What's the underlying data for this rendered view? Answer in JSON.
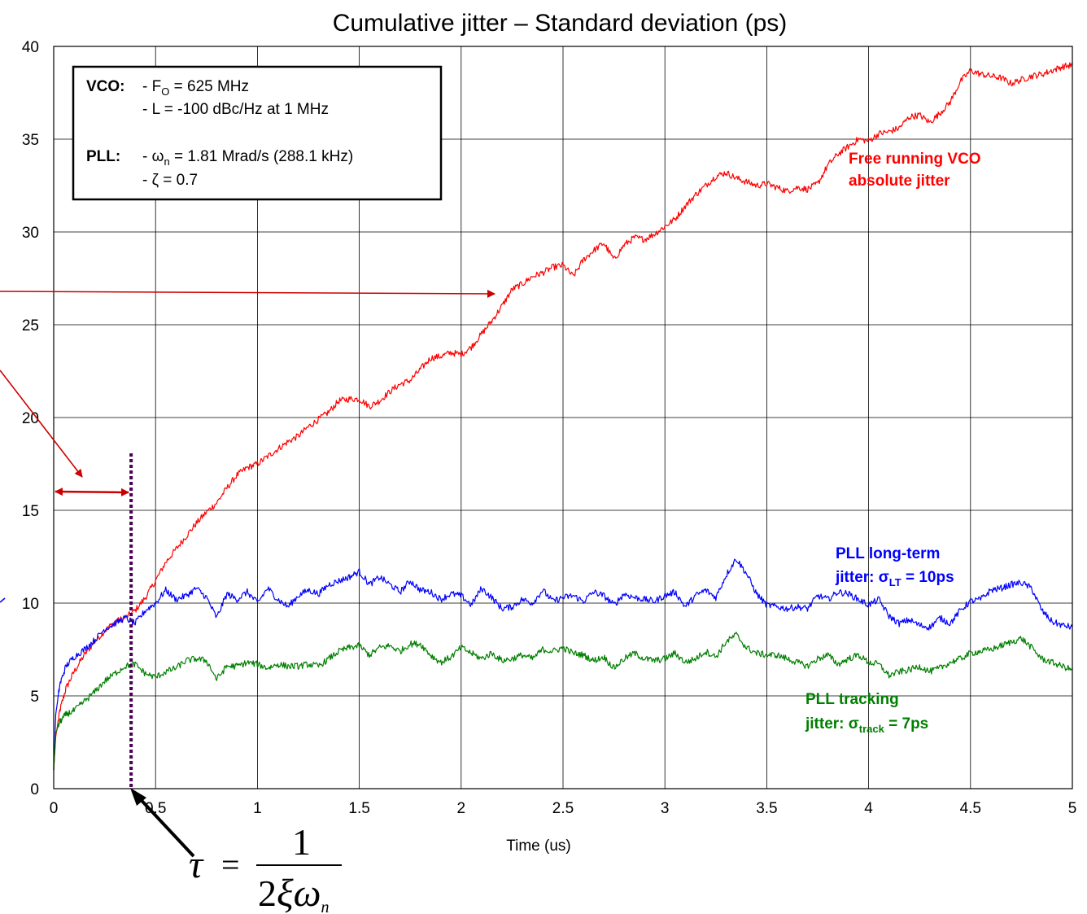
{
  "chart_data": {
    "type": "line",
    "title": "Cumulative jitter – Standard deviation (ps)",
    "xlabel": "Time (us)",
    "ylabel": "",
    "xlim": [
      0,
      5
    ],
    "ylim": [
      0,
      40
    ],
    "x_ticks": [
      "0",
      "0.5",
      "1",
      "1.5",
      "2",
      "2.5",
      "3",
      "3.5",
      "4",
      "4.5",
      "5"
    ],
    "y_ticks": [
      "0",
      "5",
      "10",
      "15",
      "20",
      "25",
      "30",
      "35",
      "40"
    ],
    "grid": true,
    "series": [
      {
        "name": "Free running VCO absolute jitter",
        "color": "#ff0000",
        "x": [
          0,
          0.01,
          0.03,
          0.06,
          0.1,
          0.15,
          0.2,
          0.25,
          0.3,
          0.35,
          0.4,
          0.45,
          0.5,
          0.55,
          0.6,
          0.65,
          0.7,
          0.75,
          0.8,
          0.85,
          0.9,
          0.95,
          1.0,
          1.05,
          1.1,
          1.15,
          1.2,
          1.25,
          1.3,
          1.35,
          1.4,
          1.45,
          1.5,
          1.55,
          1.6,
          1.65,
          1.7,
          1.75,
          1.8,
          1.85,
          1.9,
          1.95,
          2.0,
          2.05,
          2.1,
          2.15,
          2.2,
          2.25,
          2.3,
          2.35,
          2.4,
          2.45,
          2.5,
          2.55,
          2.6,
          2.65,
          2.7,
          2.75,
          2.8,
          2.85,
          2.9,
          2.95,
          3.0,
          3.05,
          3.1,
          3.15,
          3.2,
          3.25,
          3.3,
          3.35,
          3.4,
          3.45,
          3.5,
          3.55,
          3.6,
          3.65,
          3.7,
          3.75,
          3.8,
          3.85,
          3.9,
          3.95,
          4.0,
          4.05,
          4.1,
          4.15,
          4.2,
          4.25,
          4.3,
          4.35,
          4.4,
          4.45,
          4.5,
          4.55,
          4.6,
          4.65,
          4.7,
          4.75,
          4.8,
          4.85,
          4.9,
          4.95,
          5.0
        ],
        "y": [
          1.0,
          2.8,
          4.2,
          5.4,
          6.3,
          7.2,
          7.9,
          8.5,
          9.0,
          9.2,
          9.6,
          10.3,
          11.2,
          12.2,
          12.9,
          13.6,
          14.3,
          14.9,
          15.4,
          16.2,
          16.9,
          17.3,
          17.5,
          17.9,
          18.3,
          18.7,
          19.0,
          19.5,
          19.9,
          20.3,
          20.9,
          21.0,
          21.0,
          20.6,
          20.9,
          21.4,
          21.8,
          22.0,
          22.6,
          23.2,
          23.3,
          23.5,
          23.4,
          23.8,
          24.5,
          25.2,
          26.0,
          26.9,
          27.2,
          27.6,
          27.8,
          28.1,
          28.2,
          27.6,
          28.5,
          29.0,
          29.4,
          28.5,
          29.3,
          29.7,
          29.6,
          29.9,
          30.3,
          30.7,
          31.4,
          32.0,
          32.5,
          33.0,
          33.2,
          32.9,
          32.7,
          32.5,
          32.6,
          32.4,
          32.2,
          32.4,
          32.3,
          32.6,
          33.6,
          34.2,
          34.6,
          35.0,
          34.9,
          35.3,
          35.4,
          35.6,
          36.2,
          36.3,
          35.9,
          36.4,
          37.0,
          38.1,
          38.7,
          38.5,
          38.4,
          38.3,
          38.0,
          38.2,
          38.4,
          38.5,
          38.7,
          38.9,
          39.0
        ]
      },
      {
        "name": "PLL long-term jitter: σLT = 10ps",
        "color": "#0000ff",
        "x": [
          0,
          0.01,
          0.03,
          0.06,
          0.1,
          0.15,
          0.2,
          0.25,
          0.3,
          0.35,
          0.4,
          0.45,
          0.5,
          0.55,
          0.6,
          0.65,
          0.7,
          0.75,
          0.8,
          0.85,
          0.9,
          0.95,
          1.0,
          1.05,
          1.1,
          1.15,
          1.2,
          1.25,
          1.3,
          1.35,
          1.4,
          1.45,
          1.5,
          1.55,
          1.6,
          1.65,
          1.7,
          1.75,
          1.8,
          1.85,
          1.9,
          1.95,
          2.0,
          2.05,
          2.1,
          2.15,
          2.2,
          2.25,
          2.3,
          2.35,
          2.4,
          2.45,
          2.5,
          2.55,
          2.6,
          2.65,
          2.7,
          2.75,
          2.8,
          2.85,
          2.9,
          2.95,
          3.0,
          3.05,
          3.1,
          3.15,
          3.2,
          3.25,
          3.3,
          3.35,
          3.4,
          3.45,
          3.5,
          3.55,
          3.6,
          3.65,
          3.7,
          3.75,
          3.8,
          3.85,
          3.9,
          3.95,
          4.0,
          4.05,
          4.1,
          4.15,
          4.2,
          4.25,
          4.3,
          4.35,
          4.4,
          4.45,
          4.5,
          4.55,
          4.6,
          4.65,
          4.7,
          4.75,
          4.8,
          4.85,
          4.9,
          4.95,
          5.0
        ],
        "y": [
          1.0,
          4.0,
          5.6,
          6.6,
          7.1,
          7.5,
          8.0,
          8.6,
          8.9,
          9.2,
          8.9,
          9.6,
          10.0,
          10.7,
          10.2,
          10.4,
          10.8,
          10.3,
          9.2,
          10.5,
          10.2,
          10.6,
          10.0,
          10.8,
          10.2,
          9.8,
          10.4,
          10.7,
          10.5,
          11.0,
          11.2,
          11.4,
          11.7,
          11.0,
          11.4,
          11.0,
          10.6,
          11.2,
          10.7,
          10.6,
          10.2,
          10.5,
          10.4,
          9.9,
          10.8,
          10.3,
          9.7,
          9.8,
          10.2,
          10.0,
          10.7,
          10.1,
          10.3,
          10.4,
          10.1,
          10.6,
          10.4,
          9.9,
          10.5,
          10.3,
          10.2,
          10.1,
          10.4,
          10.6,
          9.8,
          10.4,
          10.7,
          10.3,
          11.5,
          12.4,
          11.6,
          10.5,
          9.9,
          9.8,
          9.7,
          9.8,
          9.7,
          10.4,
          10.2,
          10.6,
          10.5,
          10.2,
          9.9,
          10.2,
          9.3,
          8.9,
          9.1,
          8.8,
          8.7,
          9.2,
          8.9,
          9.6,
          10.1,
          10.2,
          10.7,
          10.8,
          11.0,
          11.1,
          10.8,
          9.6,
          9.0,
          8.8,
          8.7
        ]
      },
      {
        "name": "PLL tracking jitter: σtrack = 7ps",
        "color": "#008000",
        "x": [
          0,
          0.01,
          0.03,
          0.06,
          0.1,
          0.15,
          0.2,
          0.25,
          0.3,
          0.35,
          0.4,
          0.45,
          0.5,
          0.55,
          0.6,
          0.65,
          0.7,
          0.75,
          0.8,
          0.85,
          0.9,
          0.95,
          1.0,
          1.05,
          1.1,
          1.15,
          1.2,
          1.25,
          1.3,
          1.35,
          1.4,
          1.45,
          1.5,
          1.55,
          1.6,
          1.65,
          1.7,
          1.75,
          1.8,
          1.85,
          1.9,
          1.95,
          2.0,
          2.05,
          2.1,
          2.15,
          2.2,
          2.25,
          2.3,
          2.35,
          2.4,
          2.45,
          2.5,
          2.55,
          2.6,
          2.65,
          2.7,
          2.75,
          2.8,
          2.85,
          2.9,
          2.95,
          3.0,
          3.05,
          3.1,
          3.15,
          3.2,
          3.25,
          3.3,
          3.35,
          3.4,
          3.45,
          3.5,
          3.55,
          3.6,
          3.65,
          3.7,
          3.75,
          3.8,
          3.85,
          3.9,
          3.95,
          4.0,
          4.05,
          4.1,
          4.15,
          4.2,
          4.25,
          4.3,
          4.35,
          4.4,
          4.45,
          4.5,
          4.55,
          4.6,
          4.65,
          4.7,
          4.75,
          4.8,
          4.85,
          4.9,
          4.95,
          5.0
        ],
        "y": [
          1.0,
          3.0,
          3.6,
          4.0,
          4.2,
          4.7,
          5.2,
          5.8,
          6.2,
          6.6,
          6.7,
          6.2,
          6.0,
          6.3,
          6.5,
          6.9,
          7.0,
          6.9,
          5.9,
          6.6,
          6.6,
          6.8,
          6.7,
          6.5,
          6.7,
          6.6,
          6.6,
          6.7,
          6.6,
          7.0,
          7.4,
          7.6,
          7.7,
          7.2,
          7.6,
          7.7,
          7.4,
          7.8,
          7.8,
          7.2,
          6.8,
          7.1,
          7.6,
          7.3,
          7.0,
          7.3,
          6.9,
          7.0,
          7.2,
          7.0,
          7.5,
          7.4,
          7.6,
          7.3,
          7.2,
          6.9,
          7.1,
          6.5,
          7.0,
          7.3,
          7.0,
          6.9,
          7.0,
          7.3,
          6.8,
          7.0,
          7.4,
          7.1,
          7.9,
          8.3,
          7.6,
          7.3,
          7.2,
          7.2,
          7.0,
          6.8,
          6.6,
          7.0,
          7.2,
          6.7,
          7.0,
          7.2,
          6.8,
          6.7,
          6.1,
          6.3,
          6.4,
          6.6,
          6.3,
          6.5,
          6.8,
          7.0,
          7.3,
          7.4,
          7.5,
          7.7,
          7.9,
          8.1,
          7.6,
          7.0,
          6.8,
          6.6,
          6.4
        ]
      }
    ]
  },
  "info_box": {
    "vco_label": "VCO:",
    "vco_line1_prefix": "- F",
    "vco_line1_sub": "O",
    "vco_line1_rest": " = 625 MHz",
    "vco_line2": "- L = -100 dBc/Hz at 1 MHz",
    "pll_label": "PLL:",
    "pll_line1_prefix": "- ω",
    "pll_line1_sub": "n",
    "pll_line1_rest": " = 1.81 Mrad/s (288.1 kHz)",
    "pll_line2": "- ζ = 0.7"
  },
  "annotations": {
    "vco_line1": "Free running VCO",
    "vco_line2": "absolute jitter",
    "lt_line1": "PLL long-term",
    "lt_line2_prefix": "jitter: σ",
    "lt_line2_sub": "LT",
    "lt_line2_rest": " = 10ps",
    "track_line1": "PLL tracking",
    "track_line2_prefix": "jitter: σ",
    "track_line2_sub": "track",
    "track_line2_rest": " = 7ps",
    "tau_marker_x": 0.38
  },
  "formula": {
    "lhs": "τ",
    "eq": "=",
    "num": "1",
    "den_2": "2",
    "den_xi": "ξ",
    "den_omega": "ω",
    "den_sub": "n"
  },
  "colors": {
    "vco": "#ff0000",
    "long_term": "#0000ff",
    "tracking": "#008000",
    "marker": "#4b0055",
    "arrow": "#cc0000"
  }
}
